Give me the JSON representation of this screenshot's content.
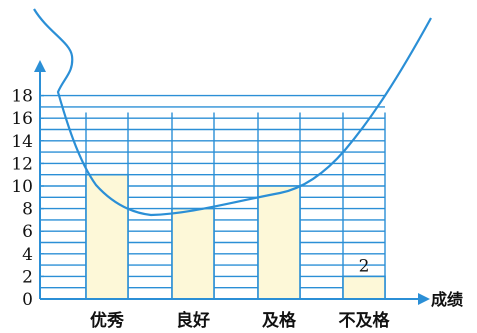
{
  "chart_data": {
    "type": "bar",
    "categories": [
      "优秀",
      "良好",
      "及格",
      "不及格"
    ],
    "values": [
      11,
      8,
      10,
      2
    ],
    "data_labels": [
      "",
      "",
      "",
      "2"
    ],
    "xlabel": "成绩",
    "ylabel": "",
    "ylim": [
      0,
      18
    ],
    "yticks": [
      "0",
      "2",
      "4",
      "6",
      "8",
      "10",
      "12",
      "14",
      "16",
      "18"
    ],
    "grid": "horizontal",
    "bar_color": "#fdf8d8",
    "line_color": "#2b8fd6",
    "text_color": "#111111"
  }
}
